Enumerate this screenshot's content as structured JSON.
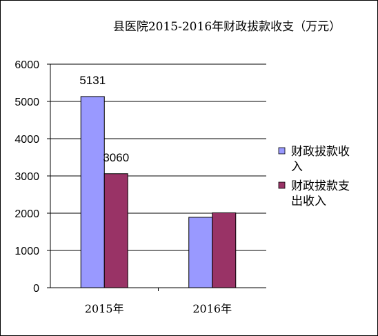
{
  "chart_data": {
    "type": "bar",
    "title": "县医院2015-2016年财政拔款收支（万元）",
    "categories": [
      "2015年",
      "2016年"
    ],
    "series": [
      {
        "name": "财政拔款收入",
        "legend_lines": [
          "财政拔款收",
          "入"
        ],
        "values": [
          5131,
          1890
        ],
        "color": "#9999ff",
        "data_labels": [
          "5131",
          null
        ]
      },
      {
        "name": "财政拔款支出收入",
        "legend_lines": [
          "财政拔款支",
          "出收入"
        ],
        "values": [
          3060,
          2010
        ],
        "color": "#993366",
        "data_labels": [
          "3060",
          null
        ]
      }
    ],
    "ylim": [
      0,
      6000
    ],
    "yticks": [
      "0",
      "1000",
      "2000",
      "3000",
      "4000",
      "5000",
      "6000"
    ],
    "grid": true,
    "legend_position": "right",
    "xlabel": "",
    "ylabel": ""
  }
}
